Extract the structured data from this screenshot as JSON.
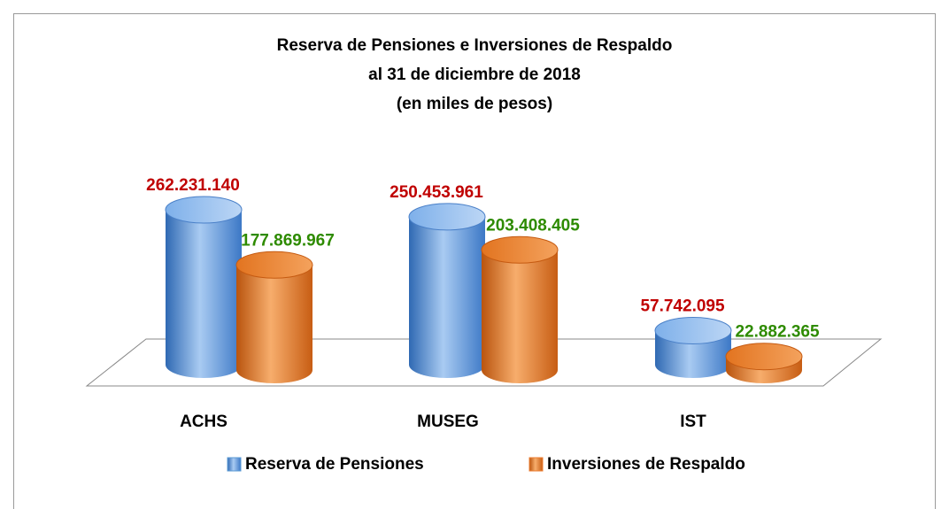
{
  "chart_data": {
    "type": "bar3d",
    "title": [
      "Reserva de Pensiones e Inversiones de Respaldo",
      "al 31 de diciembre de 2018",
      "(en miles de pesos)"
    ],
    "categories": [
      "ACHS",
      "MUSEG",
      "IST"
    ],
    "series": [
      {
        "name": "Reserva de Pensiones",
        "color": "#5b9bd5",
        "label_color": "#c00000",
        "values": [
          262231140,
          250453961,
          57742095
        ],
        "value_labels": [
          "262.231.140",
          "250.453.961",
          "57.742.095"
        ]
      },
      {
        "name": "Inversiones de Respaldo",
        "color": "#ed7d31",
        "label_color": "#2e8b00",
        "values": [
          177869967,
          203408405,
          22882365
        ],
        "value_labels": [
          "177.869.967",
          "203.408.405",
          "22.882.365"
        ]
      }
    ]
  }
}
